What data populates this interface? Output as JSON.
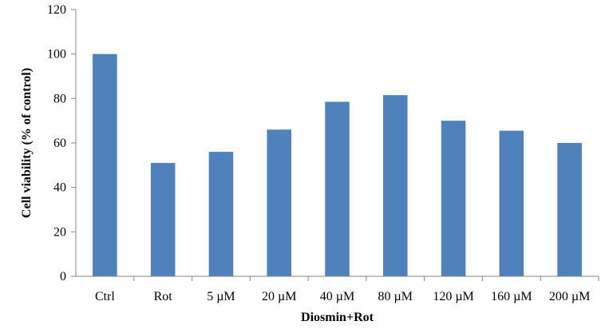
{
  "chart_data": {
    "type": "bar",
    "categories": [
      "Ctrl",
      "Rot",
      "5 µM",
      "20 µM",
      "40 µM",
      "80 µM",
      "120 µM",
      "160 µM",
      "200 µM"
    ],
    "values": [
      100,
      51,
      56,
      66,
      78.5,
      81.5,
      70,
      65.5,
      60
    ],
    "title": "",
    "xlabel": "Diosmin+Rot",
    "ylabel": "Cell viability (% of control)",
    "ylim": [
      0,
      120
    ],
    "yticks": [
      0,
      20,
      40,
      60,
      80,
      100,
      120
    ],
    "grid": false,
    "legend": "none",
    "bar_color": "#4f81bd",
    "axis_color": "#868686"
  }
}
